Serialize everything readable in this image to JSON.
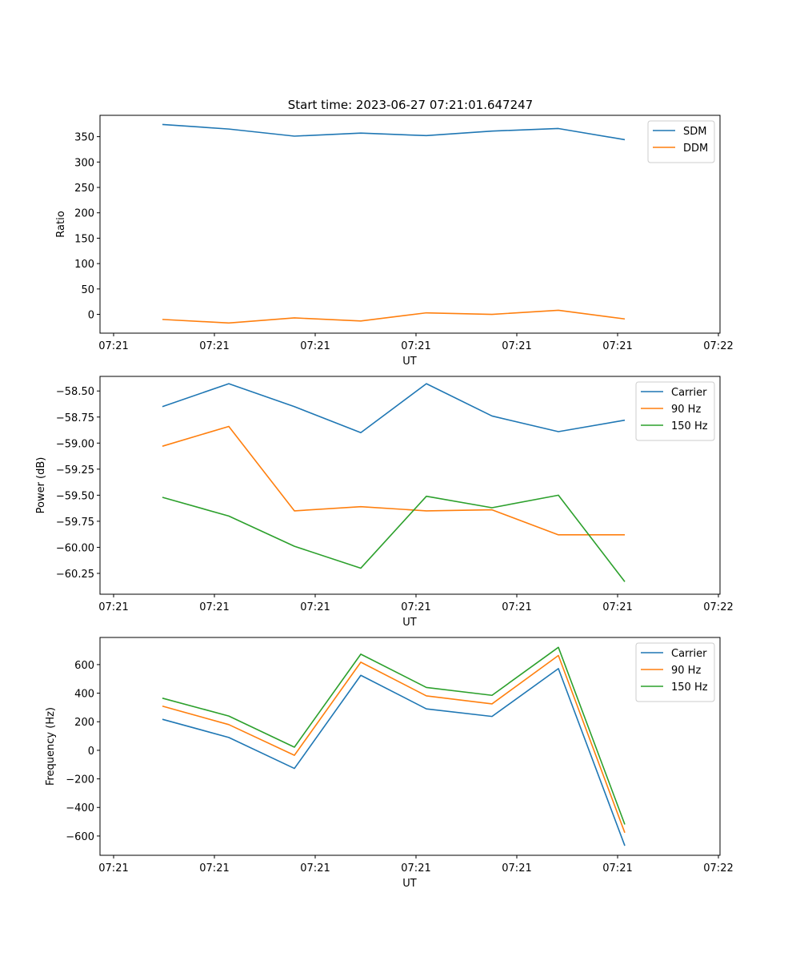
{
  "figure_title": "Start time: 2023-06-27 07:21:01.647247",
  "chart_data": [
    {
      "type": "line",
      "xlabel": "UT",
      "ylabel": "Ratio",
      "x_tick_labels": [
        "07:21",
        "07:21",
        "07:21",
        "07:21",
        "07:21",
        "07:21",
        "07:22"
      ],
      "ylim": [
        -37,
        392
      ],
      "y_ticks": [
        0,
        50,
        100,
        150,
        200,
        250,
        300,
        350
      ],
      "y_tick_labels": [
        "0",
        "50",
        "100",
        "150",
        "200",
        "250",
        "300",
        "350"
      ],
      "legend_position": "top-right",
      "series": [
        {
          "name": "SDM",
          "color": "#1f77b4",
          "values": [
            374,
            365,
            351,
            357,
            352,
            361,
            366,
            344
          ]
        },
        {
          "name": "DDM",
          "color": "#ff7f0e",
          "values": [
            -10,
            -17,
            -7,
            -13,
            3,
            0,
            8,
            -9
          ]
        }
      ]
    },
    {
      "type": "line",
      "xlabel": "UT",
      "ylabel": "Power (dB)",
      "x_tick_labels": [
        "07:21",
        "07:21",
        "07:21",
        "07:21",
        "07:21",
        "07:21",
        "07:22"
      ],
      "ylim": [
        -60.45,
        -58.36
      ],
      "y_ticks": [
        -60.25,
        -60.0,
        -59.75,
        -59.5,
        -59.25,
        -59.0,
        -58.75,
        -58.5
      ],
      "y_tick_labels": [
        "−60.25",
        "−60.00",
        "−59.75",
        "−59.50",
        "−59.25",
        "−59.00",
        "−58.75",
        "−58.50"
      ],
      "legend_position": "top-right",
      "series": [
        {
          "name": "Carrier",
          "color": "#1f77b4",
          "values": [
            -58.65,
            -58.43,
            -58.65,
            -58.9,
            -58.43,
            -58.74,
            -58.89,
            -58.78
          ]
        },
        {
          "name": "90 Hz",
          "color": "#ff7f0e",
          "values": [
            -59.03,
            -58.84,
            -59.65,
            -59.61,
            -59.65,
            -59.64,
            -59.88,
            -59.88
          ]
        },
        {
          "name": "150 Hz",
          "color": "#2ca02c",
          "values": [
            -59.52,
            -59.7,
            -59.99,
            -60.2,
            -59.51,
            -59.62,
            -59.5,
            -60.33
          ]
        }
      ]
    },
    {
      "type": "line",
      "xlabel": "UT",
      "ylabel": "Frequency (Hz)",
      "x_tick_labels": [
        "07:21",
        "07:21",
        "07:21",
        "07:21",
        "07:21",
        "07:21",
        "07:22"
      ],
      "ylim": [
        -735,
        790
      ],
      "y_ticks": [
        -600,
        -400,
        -200,
        0,
        200,
        400,
        600
      ],
      "y_tick_labels": [
        "−600",
        "−400",
        "−200",
        "0",
        "200",
        "400",
        "600"
      ],
      "legend_position": "top-right",
      "series": [
        {
          "name": "Carrier",
          "color": "#1f77b4",
          "values": [
            217,
            90,
            -127,
            525,
            290,
            237,
            572,
            -668
          ]
        },
        {
          "name": "90 Hz",
          "color": "#ff7f0e",
          "values": [
            309,
            180,
            -35,
            617,
            381,
            325,
            664,
            -577
          ]
        },
        {
          "name": "150 Hz",
          "color": "#2ca02c",
          "values": [
            365,
            240,
            22,
            673,
            440,
            385,
            721,
            -519
          ]
        }
      ]
    }
  ]
}
